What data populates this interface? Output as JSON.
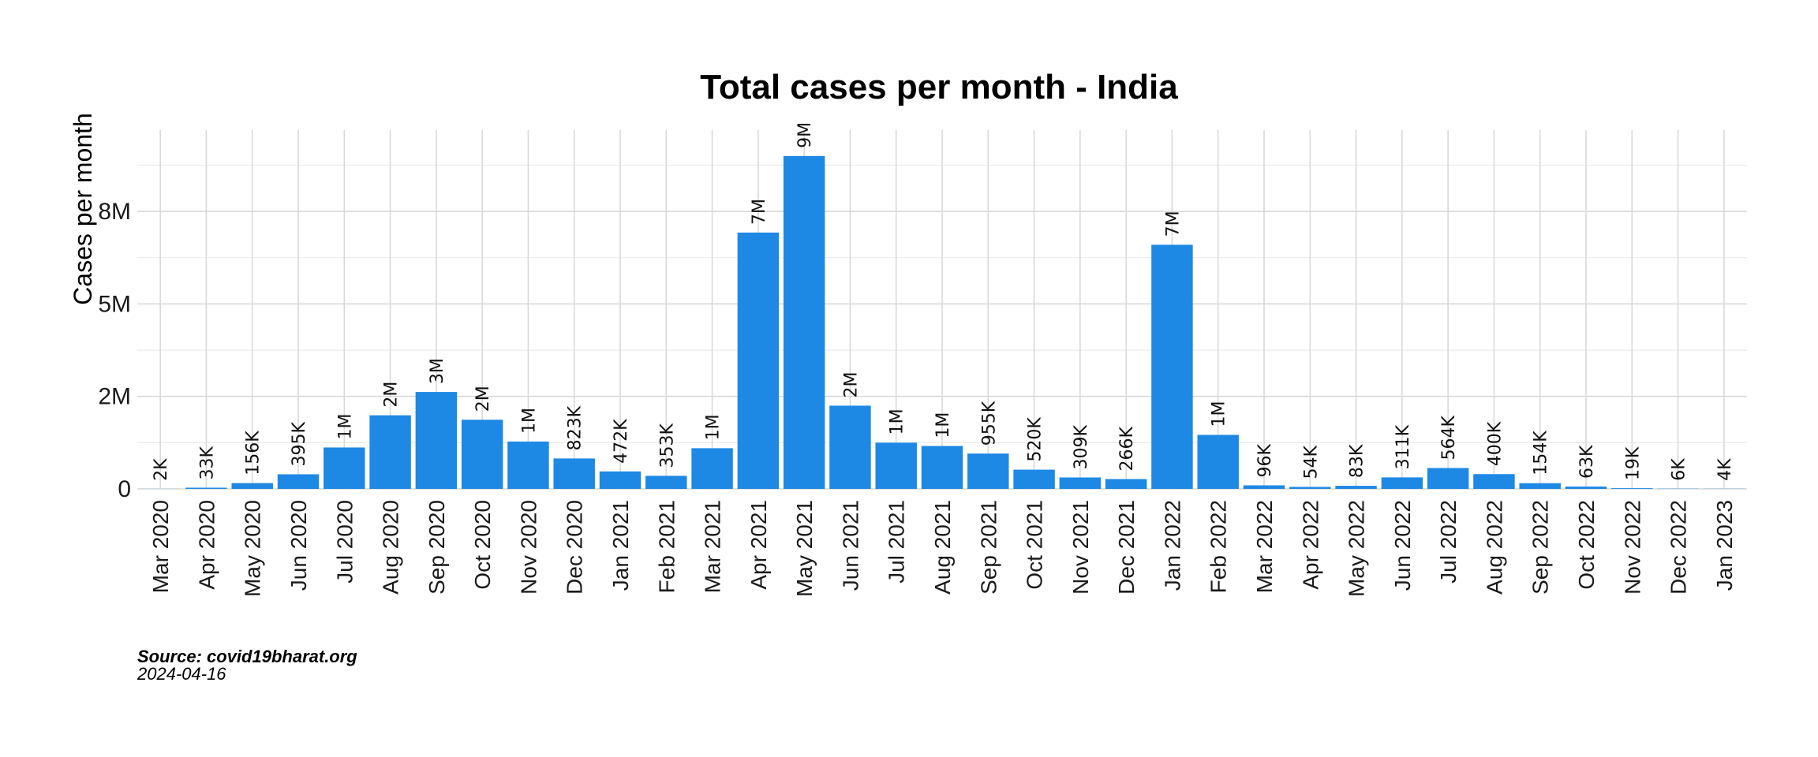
{
  "chart_data": {
    "type": "bar",
    "title": "Total cases per month - India",
    "xlabel": "",
    "ylabel": "Cases per month",
    "ylim": [
      0,
      9700000
    ],
    "yticks": [
      0,
      2500000,
      5000000,
      7500000
    ],
    "ytick_labels": [
      "0",
      "2M",
      "5M",
      "8M"
    ],
    "grid": true,
    "bar_color": "#1e88e5",
    "categories": [
      "Mar 2020",
      "Apr 2020",
      "May 2020",
      "Jun 2020",
      "Jul 2020",
      "Aug 2020",
      "Sep 2020",
      "Oct 2020",
      "Nov 2020",
      "Dec 2020",
      "Jan 2021",
      "Feb 2021",
      "Mar 2021",
      "Apr 2021",
      "May 2021",
      "Jun 2021",
      "Jul 2021",
      "Aug 2021",
      "Sep 2021",
      "Oct 2021",
      "Nov 2021",
      "Dec 2021",
      "Jan 2022",
      "Feb 2022",
      "Mar 2022",
      "Apr 2022",
      "May 2022",
      "Jun 2022",
      "Jul 2022",
      "Aug 2022",
      "Sep 2022",
      "Oct 2022",
      "Nov 2022",
      "Dec 2022",
      "Jan 2023"
    ],
    "values": [
      1600,
      33000,
      156000,
      395000,
      1120000,
      1990000,
      2620000,
      1870000,
      1280000,
      823000,
      472000,
      353000,
      1100000,
      6930000,
      9000000,
      2250000,
      1250000,
      1160000,
      955000,
      520000,
      309000,
      266000,
      6600000,
      1460000,
      96000,
      54000,
      83000,
      311000,
      564000,
      400000,
      154000,
      63000,
      19000,
      6000,
      4000
    ],
    "labels": [
      "2K",
      "33K",
      "156K",
      "395K",
      "1M",
      "2M",
      "3M",
      "2M",
      "1M",
      "823K",
      "472K",
      "353K",
      "1M",
      "7M",
      "9M",
      "2M",
      "1M",
      "1M",
      "955K",
      "520K",
      "309K",
      "266K",
      "7M",
      "1M",
      "96K",
      "54K",
      "83K",
      "311K",
      "564K",
      "400K",
      "154K",
      "63K",
      "19K",
      "6K",
      "4K"
    ]
  },
  "caption": {
    "source": "Source: covid19bharat.org",
    "date": "2024-04-16"
  }
}
